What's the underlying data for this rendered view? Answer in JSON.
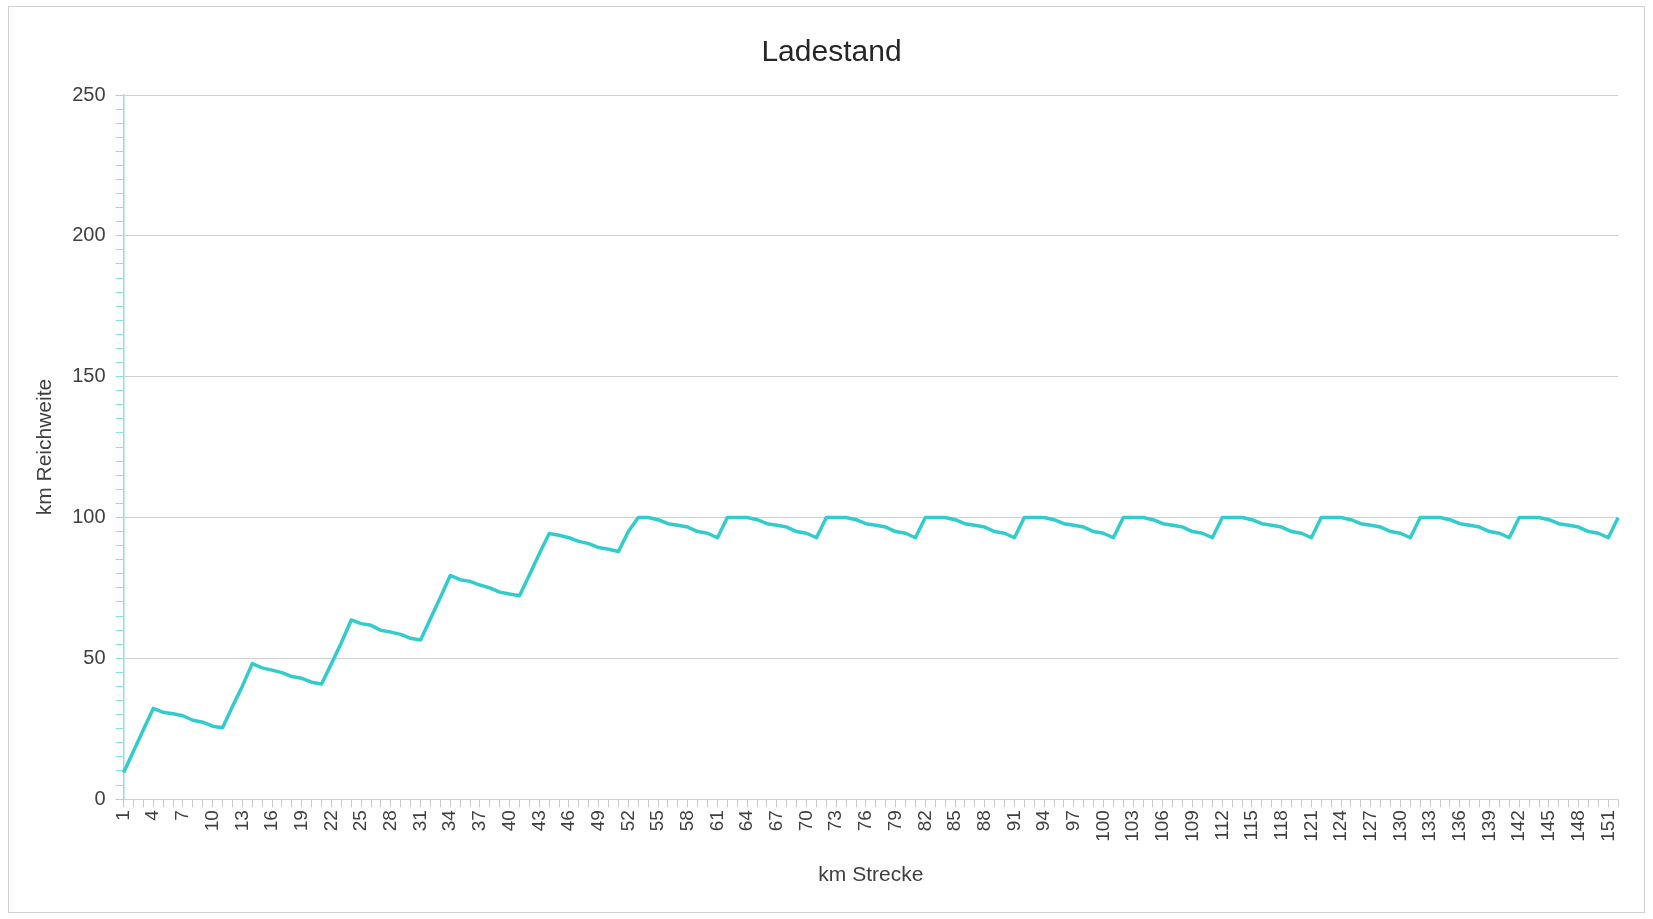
{
  "chart_data": {
    "type": "line",
    "title": "Ladestand",
    "xlabel": "km Strecke",
    "ylabel": "km Reichweite",
    "categories": [
      "1",
      null,
      null,
      "4",
      null,
      null,
      "7",
      null,
      null,
      "10",
      null,
      null,
      "13",
      null,
      null,
      "16",
      null,
      null,
      "19",
      null,
      null,
      "22",
      null,
      null,
      "25",
      null,
      null,
      "28",
      null,
      null,
      "31",
      null,
      null,
      "34",
      null,
      null,
      "37",
      null,
      null,
      "40",
      null,
      null,
      "43",
      null,
      null,
      "46",
      null,
      null,
      "49",
      null,
      null,
      "52",
      null,
      null,
      "55",
      null,
      null,
      "58",
      null,
      null,
      "61",
      null,
      null,
      "64",
      null,
      null,
      "67",
      null,
      null,
      "70",
      null,
      null,
      "73",
      null,
      null,
      "76",
      null,
      null,
      "79",
      null,
      null,
      "82",
      null,
      null,
      "85",
      null,
      null,
      "88",
      null,
      null,
      "91",
      null,
      null,
      "94",
      null,
      null,
      "97",
      null,
      null,
      "100",
      null,
      null,
      "103",
      null,
      null,
      "106",
      null,
      null,
      "109",
      null,
      null,
      "112",
      null,
      null,
      "115",
      null,
      null,
      "118",
      null,
      null,
      "121",
      null,
      null,
      "124",
      null,
      null,
      "127",
      null,
      null,
      "130",
      null,
      null,
      "133",
      null,
      null,
      "136",
      null,
      null,
      "139",
      null,
      null,
      "142",
      null,
      null,
      "145",
      null,
      null,
      "148",
      null,
      null,
      "151",
      null
    ],
    "series": [
      {
        "color": "#33cccc",
        "values": [
          9.4,
          17,
          24.6,
          32.2,
          30.8,
          30.3,
          29.6,
          28,
          27.3,
          25.9,
          25.3,
          32.9,
          40.1,
          48.1,
          46.6,
          45.8,
          44.9,
          43.5,
          42.9,
          41.5,
          40.9,
          48.1,
          55.5,
          63.6,
          62.3,
          61.7,
          59.9,
          59.3,
          58.5,
          57.1,
          56.5,
          64,
          71.6,
          79.4,
          77.9,
          77.3,
          76,
          75,
          73.5,
          72.8,
          72.2,
          79.6,
          87.1,
          94.3,
          93.7,
          92.8,
          91.5,
          90.7,
          89.3,
          88.7,
          87.9,
          95,
          100,
          100,
          99.2,
          97.8,
          97.2,
          96.6,
          95,
          94.4,
          92.8,
          100,
          100,
          100,
          99.2,
          97.8,
          97.2,
          96.6,
          95,
          94.4,
          92.8,
          100,
          100,
          100,
          99.2,
          97.8,
          97.2,
          96.6,
          95,
          94.4,
          92.8,
          100,
          100,
          100,
          99.2,
          97.8,
          97.2,
          96.6,
          95,
          94.4,
          92.8,
          100,
          100,
          100,
          99.2,
          97.8,
          97.2,
          96.6,
          95,
          94.4,
          92.8,
          100,
          100,
          100,
          99.2,
          97.8,
          97.2,
          96.6,
          95,
          94.4,
          92.8,
          100,
          100,
          100,
          99.2,
          97.8,
          97.2,
          96.6,
          95,
          94.4,
          92.8,
          100,
          100,
          100,
          99.2,
          97.8,
          97.2,
          96.6,
          95,
          94.4,
          92.8,
          100,
          100,
          100,
          99.2,
          97.8,
          97.2,
          96.6,
          95,
          94.4,
          92.8,
          100,
          100,
          100,
          99.2,
          97.8,
          97.2,
          96.6,
          95,
          94.4,
          92.8,
          100
        ]
      }
    ],
    "ylim": [
      0,
      250
    ],
    "yticks": [
      0,
      {
        "value": 5,
        "label": null
      },
      {
        "value": 10,
        "label": null
      },
      {
        "value": 15,
        "label": null
      },
      {
        "value": 20,
        "label": null
      },
      {
        "value": 25,
        "label": null
      },
      {
        "value": 30,
        "label": null
      },
      {
        "value": 35,
        "label": null
      },
      {
        "value": 40,
        "label": null
      },
      {
        "value": 45,
        "label": null
      },
      50,
      {
        "value": 55,
        "label": null
      },
      {
        "value": 60,
        "label": null
      },
      {
        "value": 65,
        "label": null
      },
      {
        "value": 70,
        "label": null
      },
      {
        "value": 75,
        "label": null
      },
      {
        "value": 80,
        "label": null
      },
      {
        "value": 85,
        "label": null
      },
      {
        "value": 90,
        "label": null
      },
      {
        "value": 95,
        "label": null
      },
      100,
      {
        "value": 105,
        "label": null
      },
      {
        "value": 110,
        "label": null
      },
      {
        "value": 115,
        "label": null
      },
      {
        "value": 120,
        "label": null
      },
      {
        "value": 125,
        "label": null
      },
      {
        "value": 130,
        "label": null
      },
      {
        "value": 135,
        "label": null
      },
      {
        "value": 140,
        "label": null
      },
      {
        "value": 145,
        "label": null
      },
      150,
      {
        "value": 155,
        "label": null
      },
      {
        "value": 160,
        "label": null
      },
      {
        "value": 165,
        "label": null
      },
      {
        "value": 170,
        "label": null
      },
      {
        "value": 175,
        "label": null
      },
      {
        "value": 180,
        "label": null
      },
      {
        "value": 185,
        "label": null
      },
      {
        "value": 190,
        "label": null
      },
      {
        "value": 195,
        "label": null
      },
      200,
      {
        "value": 205,
        "label": null
      },
      {
        "value": 210,
        "label": null
      },
      {
        "value": 215,
        "label": null
      },
      {
        "value": 220,
        "label": null
      },
      {
        "value": 225,
        "label": null
      },
      {
        "value": 230,
        "label": null
      },
      {
        "value": 235,
        "label": null
      },
      {
        "value": 240,
        "label": null
      },
      {
        "value": 245,
        "label": null
      },
      250
    ],
    "grid": "y",
    "marker": "none",
    "line_style": "solid",
    "legend": false
  }
}
